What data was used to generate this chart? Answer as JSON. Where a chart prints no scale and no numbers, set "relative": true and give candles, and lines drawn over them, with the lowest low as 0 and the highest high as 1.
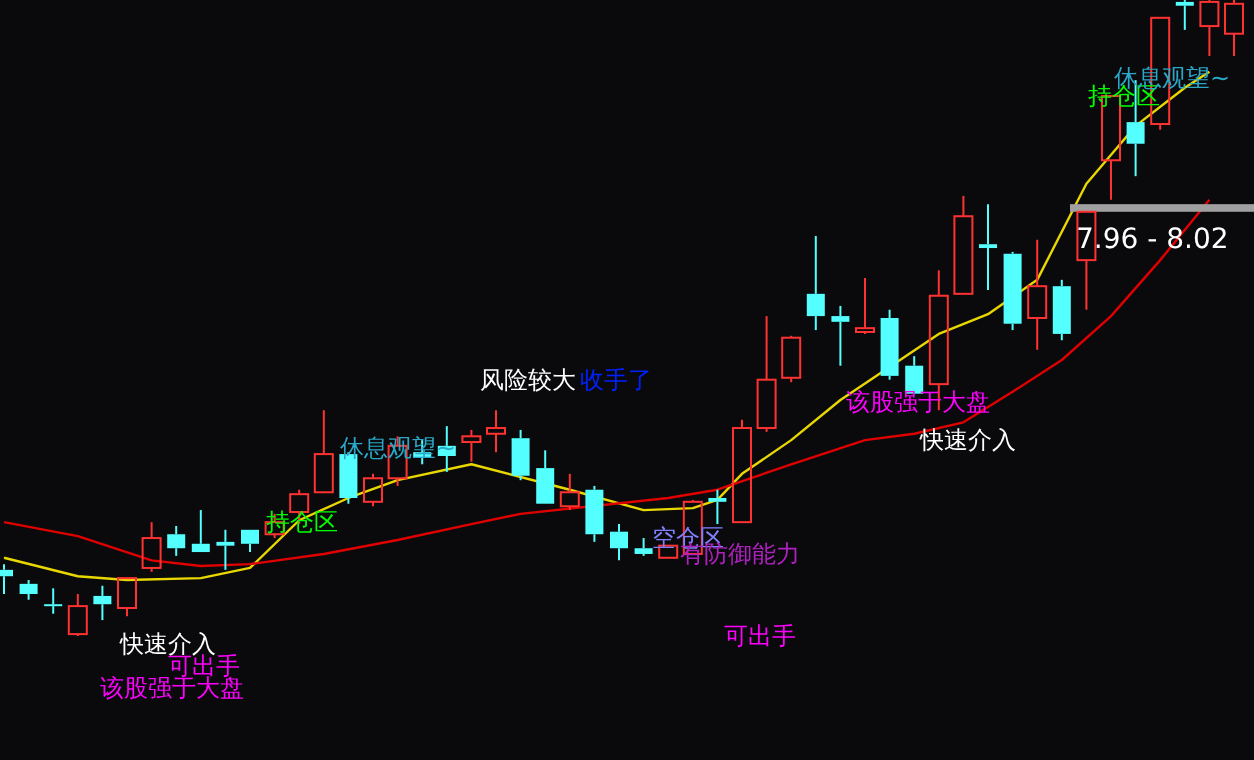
{
  "chart_data": {
    "type": "candlestick",
    "relative": true,
    "categories": [
      null,
      null,
      null,
      null,
      null,
      null,
      null,
      null,
      null,
      null,
      null,
      null,
      null,
      null,
      null,
      null,
      null,
      null,
      null,
      null,
      null,
      null,
      null,
      null,
      null,
      null,
      null,
      null,
      null,
      null,
      null,
      null,
      null,
      null,
      null,
      null,
      null,
      null,
      null,
      null,
      null,
      null,
      null,
      null,
      null,
      null,
      null,
      null,
      null,
      null,
      null
    ],
    "ohlc": [
      [
        0.104,
        0.113,
        0.066,
        0.094
      ],
      [
        0.082,
        0.088,
        0.057,
        0.066
      ],
      [
        0.05,
        0.075,
        0.035,
        0.047
      ],
      [
        0.003,
        0.066,
        0,
        0.047
      ],
      [
        0.063,
        0.079,
        0.025,
        0.05
      ],
      [
        0.044,
        0.091,
        0.031,
        0.091
      ],
      [
        0.107,
        0.179,
        0.101,
        0.154
      ],
      [
        0.16,
        0.173,
        0.126,
        0.138
      ],
      [
        0.145,
        0.198,
        0.132,
        0.132
      ],
      [
        0.148,
        0.167,
        0.104,
        0.142
      ],
      [
        0.167,
        0.167,
        0.132,
        0.145
      ],
      [
        0.16,
        0.192,
        0.154,
        0.179
      ],
      [
        0.195,
        0.23,
        0.176,
        0.223
      ],
      [
        0.226,
        0.355,
        0.226,
        0.286
      ],
      [
        0.286,
        0.289,
        0.208,
        0.217
      ],
      [
        0.211,
        0.255,
        0.204,
        0.248
      ],
      [
        0.248,
        0.314,
        0.236,
        0.299
      ],
      [
        0.289,
        0.308,
        0.27,
        0.28
      ],
      [
        0.299,
        0.33,
        0.258,
        0.283
      ],
      [
        0.305,
        0.324,
        0.274,
        0.314
      ],
      [
        0.318,
        0.355,
        0.289,
        0.327
      ],
      [
        0.311,
        0.324,
        0.245,
        0.252
      ],
      [
        0.264,
        0.292,
        0.208,
        0.208
      ],
      [
        0.204,
        0.255,
        0.198,
        0.226
      ],
      [
        0.23,
        0.236,
        0.148,
        0.16
      ],
      [
        0.164,
        0.176,
        0.119,
        0.138
      ],
      [
        0.138,
        0.154,
        0.126,
        0.129
      ],
      [
        0.123,
        0.142,
        0.123,
        0.142
      ],
      [
        0.129,
        0.214,
        0.129,
        0.211
      ],
      [
        0.217,
        0.23,
        0.176,
        0.211
      ],
      [
        0.179,
        0.34,
        0.179,
        0.327
      ],
      [
        0.327,
        0.503,
        0.321,
        0.403
      ],
      [
        0.406,
        0.472,
        0.399,
        0.469
      ],
      [
        0.538,
        0.629,
        0.481,
        0.503
      ],
      [
        0.503,
        0.519,
        0.425,
        0.494
      ],
      [
        0.478,
        0.563,
        0.475,
        0.484
      ],
      [
        0.5,
        0.513,
        0.403,
        0.409
      ],
      [
        0.425,
        0.44,
        0.381,
        0.381
      ],
      [
        0.396,
        0.575,
        0.355,
        0.535
      ],
      [
        0.538,
        0.692,
        0.538,
        0.66
      ],
      [
        0.616,
        0.679,
        0.544,
        0.61
      ],
      [
        0.601,
        0.604,
        0.481,
        0.491
      ],
      [
        0.5,
        0.623,
        0.45,
        0.55
      ],
      [
        0.55,
        0.56,
        0.465,
        0.475
      ],
      [
        0.591,
        0.667,
        0.513,
        0.667
      ],
      [
        0.748,
        0.849,
        0.686,
        0.849
      ],
      [
        0.808,
        0.874,
        0.723,
        0.774
      ],
      [
        0.805,
        0.972,
        0.796,
        0.972
      ],
      [
        0.997,
        1,
        0.953,
        0.991
      ],
      [
        0.959,
        1,
        0.912,
        0.997
      ],
      [
        0.947,
        1,
        0.912,
        0.994
      ]
    ],
    "colors": [
      "#54ffff",
      "#54ffff",
      "#54ffff",
      "#ff3232",
      "#54ffff",
      "#ff3232",
      "#ff3232",
      "#54ffff",
      "#54ffff",
      "#54ffff",
      "#54ffff",
      "#ff3232",
      "#ff3232",
      "#ff3232",
      "#54ffff",
      "#ff3232",
      "#ff3232",
      "#54ffff",
      "#54ffff",
      "#ff3232",
      "#ff3232",
      "#54ffff",
      "#54ffff",
      "#ff3232",
      "#54ffff",
      "#54ffff",
      "#54ffff",
      "#ff3232",
      "#ff3232",
      "#54ffff",
      "#ff3232",
      "#ff3232",
      "#ff3232",
      "#54ffff",
      "#54ffff",
      "#ff3232",
      "#54ffff",
      "#54ffff",
      "#ff3232",
      "#ff3232",
      "#54ffff",
      "#54ffff",
      "#ff3232",
      "#54ffff",
      "#ff3232",
      "#ff3232",
      "#54ffff",
      "#ff3232",
      "#54ffff",
      "#ff3232",
      "#ff3232"
    ],
    "series": [
      {
        "type": "line",
        "color": "#e8d800",
        "values": [
          0.123,
          null,
          null,
          0.094,
          null,
          0.088,
          null,
          null,
          0.091,
          null,
          0.107,
          null,
          0.182,
          null,
          0.217,
          null,
          0.245,
          null,
          null,
          0.27,
          null,
          null,
          null,
          0.23,
          null,
          null,
          0.198,
          null,
          0.201,
          0.214,
          0.255,
          null,
          0.308,
          null,
          0.371,
          null,
          null,
          null,
          0.475,
          null,
          0.506,
          null,
          0.56,
          null,
          0.711,
          null,
          0.802,
          null,
          0.862,
          0.887,
          null
        ]
      },
      {
        "type": "line",
        "color": "#e00000",
        "values": [
          0.179,
          null,
          null,
          0.157,
          null,
          null,
          0.119,
          null,
          0.11,
          null,
          0.113,
          null,
          null,
          0.129,
          null,
          null,
          0.151,
          null,
          null,
          0.176,
          null,
          0.192,
          null,
          null,
          null,
          null,
          null,
          0.217,
          null,
          0.23,
          null,
          null,
          0.27,
          null,
          null,
          0.308,
          null,
          0.318,
          null,
          0.336,
          null,
          0.384,
          null,
          0.434,
          null,
          0.503,
          null,
          0.591,
          null,
          0.686,
          null
        ]
      }
    ],
    "bands": [
      {
        "axis": "y",
        "from": 0.667,
        "to": 0.679,
        "label": "7.96 - 8.02",
        "color": "#a0a0a0"
      }
    ],
    "annotations": [
      "快速介入",
      "可出手",
      "该股强于大盘",
      "持仓区",
      "休息观望~",
      "风险较大",
      "收手了",
      "空仓区",
      "有防御能力",
      "可出手",
      "该股强于大盘",
      "快速介入",
      "持仓区",
      "休息观望~"
    ]
  }
}
